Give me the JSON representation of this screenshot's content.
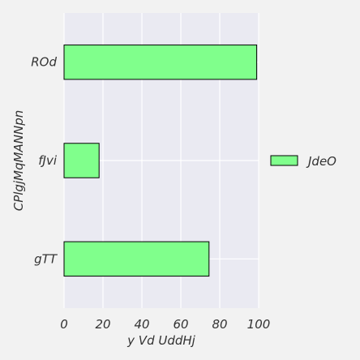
{
  "chart_data": {
    "type": "bar",
    "orientation": "horizontal",
    "categories": [
      "ROd",
      "fJvi",
      "gTT"
    ],
    "series": [
      {
        "name": "JdeO",
        "values": [
          99,
          18,
          74.5
        ]
      }
    ],
    "title": "",
    "xlabel": "y Vd UddHj",
    "ylabel": "CPlgjMqMANNpn",
    "xlim": [
      0,
      100
    ],
    "xticks": [
      "0",
      "20",
      "40",
      "60",
      "80",
      "100"
    ],
    "grid": true,
    "legend_position": "right",
    "colors": {
      "bar_fill": "#80ff8c",
      "bar_edge": "#000000",
      "plot_background": "#eaeaf2",
      "figure_background": "#f2f2f2",
      "grid": "#ffffff",
      "text": "#333333"
    }
  }
}
